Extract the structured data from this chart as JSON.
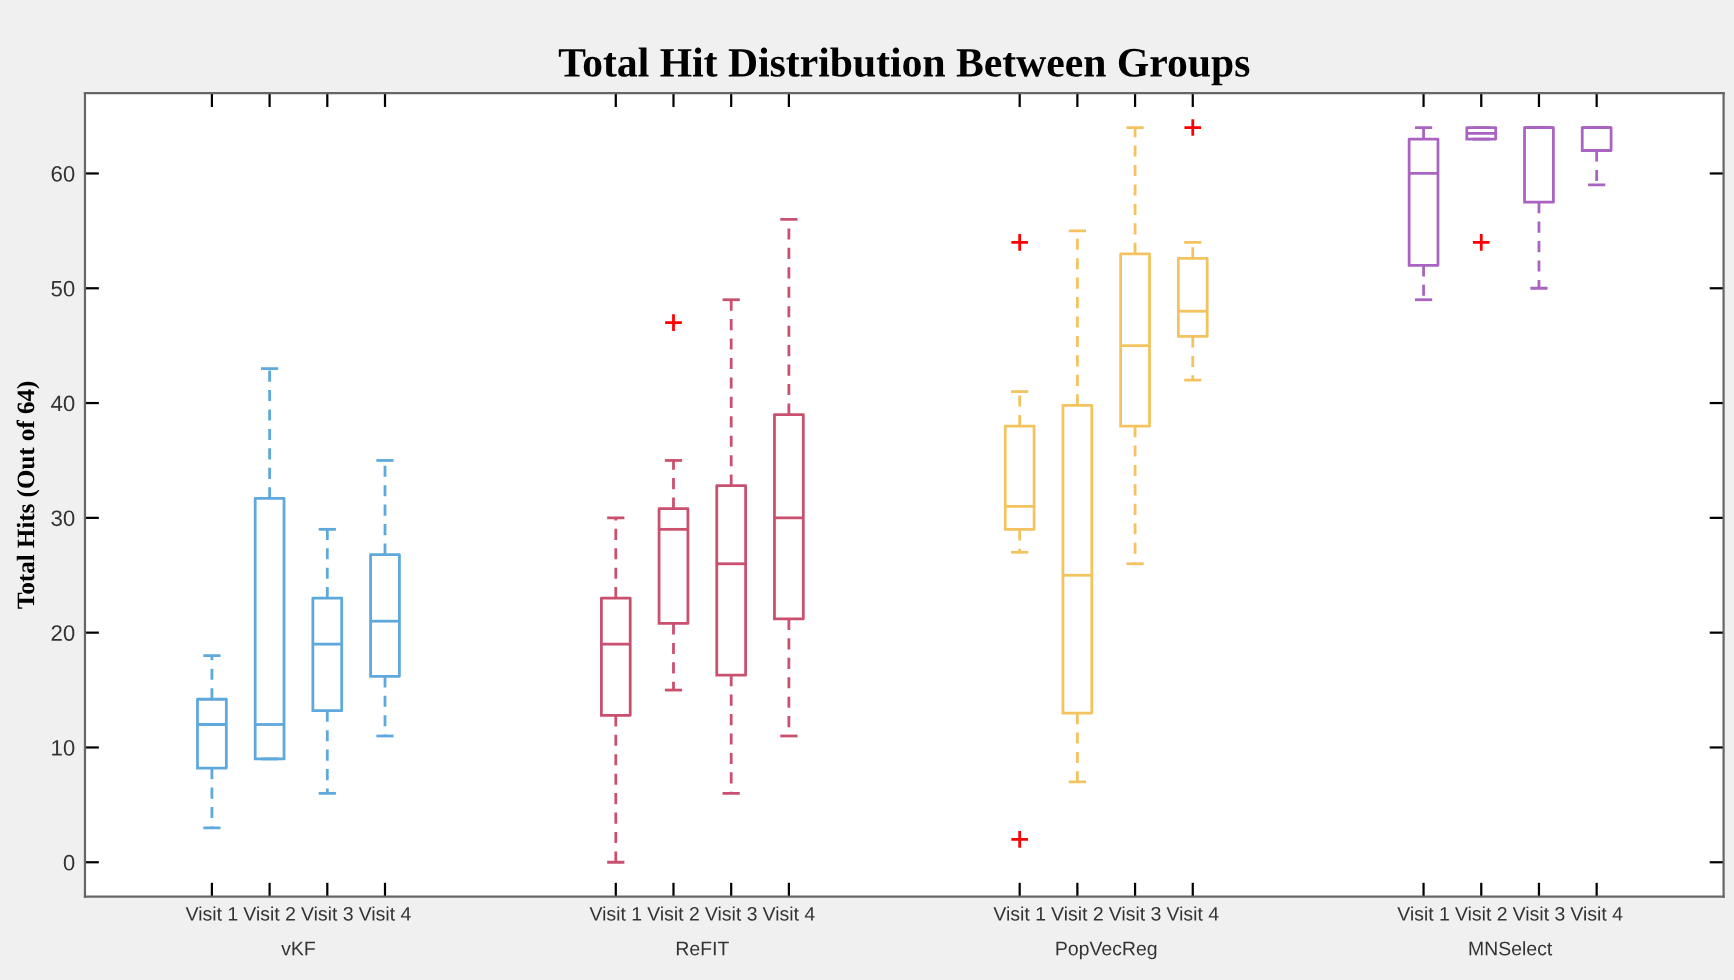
{
  "chart_data": {
    "type": "box",
    "title": "Total Hit Distribution Between Groups",
    "ylabel": "Total Hits (Out of 64)",
    "categories": [
      "Visit 1",
      "Visit 2",
      "Visit 3",
      "Visit 4",
      null,
      null,
      null,
      "Visit 1",
      "Visit 2",
      "Visit 3",
      "Visit 4",
      null,
      null,
      null,
      "Visit 1",
      "Visit 2",
      "Visit 3",
      "Visit 4",
      null,
      null,
      null,
      "Visit 1",
      "Visit 2",
      "Visit 3",
      "Visit 4"
    ],
    "annotations": [
      "vKF",
      "ReFIT",
      "PopVecReg",
      "MNSelect"
    ],
    "colors": [
      "#5ea8dc",
      "#5ea8dc",
      "#5ea8dc",
      "#5ea8dc",
      null,
      null,
      null,
      "#c9506e",
      "#c9506e",
      "#c9506e",
      "#c9506e",
      null,
      null,
      null,
      "#f2c35e",
      "#f2c35e",
      "#f2c35e",
      "#f2c35e",
      null,
      null,
      null,
      "#a963c0",
      "#a963c0",
      "#a963c0",
      "#a963c0"
    ],
    "boxes": [
      {
        "low": 3,
        "q1": 8.2,
        "median": 12,
        "q3": 14.2,
        "high": 18
      },
      {
        "low": 9,
        "q1": 9,
        "median": 12,
        "q3": 31.7,
        "high": 43
      },
      {
        "low": 6,
        "q1": 13.2,
        "median": 19,
        "q3": 23,
        "high": 29
      },
      {
        "low": 11,
        "q1": 16.2,
        "median": 21,
        "q3": 26.8,
        "high": 35
      },
      null,
      null,
      null,
      {
        "low": 0,
        "q1": 12.8,
        "median": 19,
        "q3": 23,
        "high": 30
      },
      {
        "low": 15,
        "q1": 20.8,
        "median": 29,
        "q3": 30.8,
        "high": 35,
        "outliers": [
          47
        ]
      },
      {
        "low": 6,
        "q1": 16.3,
        "median": 26,
        "q3": 32.8,
        "high": 49
      },
      {
        "low": 11,
        "q1": 21.2,
        "median": 30,
        "q3": 39,
        "high": 56
      },
      null,
      null,
      null,
      {
        "low": 27,
        "q1": 29,
        "median": 31,
        "q3": 38,
        "high": 41,
        "outliers": [
          54,
          2
        ]
      },
      {
        "low": 7,
        "q1": 13,
        "median": 25,
        "q3": 39.8,
        "high": 55
      },
      {
        "low": 26,
        "q1": 38,
        "median": 45,
        "q3": 53,
        "high": 64
      },
      {
        "low": 42,
        "q1": 45.8,
        "median": 48,
        "q3": 52.6,
        "high": 54,
        "outliers": [
          64
        ]
      },
      null,
      null,
      null,
      {
        "low": 49,
        "q1": 52,
        "median": 60,
        "q3": 63,
        "high": 64
      },
      {
        "low": 63,
        "q1": 63,
        "median": 63.5,
        "q3": 64,
        "high": 64,
        "outliers": [
          54
        ]
      },
      {
        "low": 50,
        "q1": 57.5,
        "median": 64,
        "q3": 64,
        "high": 64
      },
      {
        "low": 59,
        "q1": 62,
        "median": 64,
        "q3": 64,
        "high": 64
      }
    ],
    "ylim": [
      -3,
      67
    ],
    "yticks": [
      0,
      10,
      20,
      30,
      40,
      50,
      60
    ],
    "grid": false
  }
}
